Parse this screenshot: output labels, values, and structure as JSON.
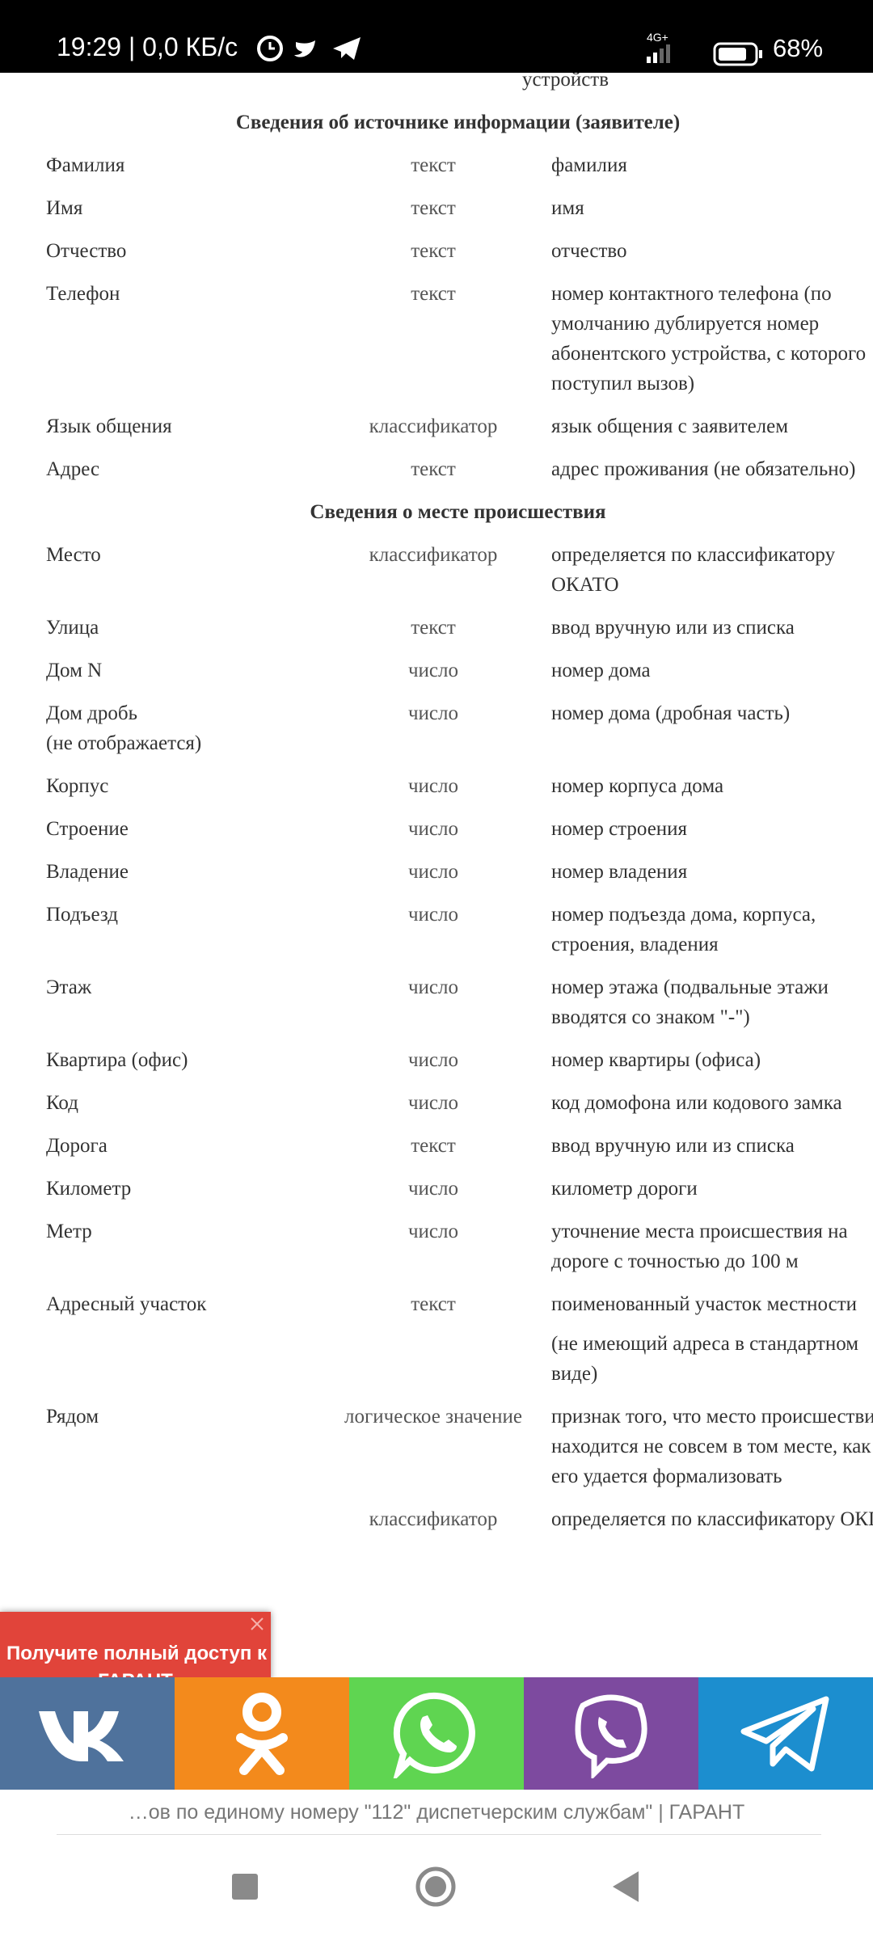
{
  "status_bar": {
    "time_speed": "19:29 | 0,0 КБ/с",
    "network": "4G+",
    "battery": "68%"
  },
  "content": {
    "top_fragment": "устройств",
    "rows": [
      {
        "heading": "Сведения об источнике информации (заявителе)"
      },
      {
        "name": "Фамилия",
        "type": "текст",
        "desc": "фамилия"
      },
      {
        "name": "Имя",
        "type": "текст",
        "desc": "имя"
      },
      {
        "name": "Отчество",
        "type": "текст",
        "desc": "отчество"
      },
      {
        "name": "Телефон",
        "type": "текст",
        "desc": "номер контактного телефона (по умолчанию дублируется номер абонентского устройства, с которого поступил вызов)"
      },
      {
        "name": "Язык общения",
        "type": "классификатор",
        "desc": "язык общения с заявителем"
      },
      {
        "name": "Адрес",
        "type": "текст",
        "desc": "адрес проживания (не обязательно)"
      },
      {
        "heading": "Сведения о месте происшествия"
      },
      {
        "name": "Место",
        "type": "классификатор",
        "desc": "определяется по классификатору ОКАТО"
      },
      {
        "name": "Улица",
        "type": "текст",
        "desc": "ввод вручную или из списка"
      },
      {
        "name": "Дом N",
        "type": "число",
        "desc": "номер дома"
      },
      {
        "name": "Дом дробь",
        "name_note": "(не отображается)",
        "type": "число",
        "desc": "номер дома (дробная часть)"
      },
      {
        "name": "Корпус",
        "type": "число",
        "desc": "номер корпуса дома"
      },
      {
        "name": "Строение",
        "type": "число",
        "desc": "номер строения"
      },
      {
        "name": "Владение",
        "type": "число",
        "desc": "номер владения"
      },
      {
        "name": "Подъезд",
        "type": "число",
        "desc": "номер подъезда дома, корпуса, строения, владения"
      },
      {
        "name": "Этаж",
        "type": "число",
        "desc": "номер этажа (подвальные этажи вводятся со знаком \"-\")"
      },
      {
        "name": "Квартира (офис)",
        "type": "число",
        "desc": "номер квартиры (офиса)"
      },
      {
        "name": "Код",
        "type": "число",
        "desc": "код домофона или кодового замка"
      },
      {
        "name": "Дорога",
        "type": "текст",
        "desc": "ввод вручную или из списка"
      },
      {
        "name": "Километр",
        "type": "число",
        "desc": "километр дороги"
      },
      {
        "name": "Метр",
        "type": "число",
        "desc": "уточнение места происшествия на дороге с точностью до 100 м"
      },
      {
        "name": "Адресный участок",
        "type": "текст",
        "desc": "поименованный участок местности",
        "desc_note": "(не имеющий адреса в стандартном виде)"
      },
      {
        "name": "Рядом",
        "type": "логическое значение",
        "desc": "признак того, что место происшествия находится не совсем в том месте, как его удается формализовать"
      },
      {
        "type": "классификатор",
        "desc": "определяется по классификатору ОКПО"
      }
    ]
  },
  "popup": {
    "text": "Получите полный доступ к",
    "text_cut": "ГАРАНТ"
  },
  "page_title": "…ов по единому номеру \"112\" диспетчерским службам\" | ГАРАНТ"
}
